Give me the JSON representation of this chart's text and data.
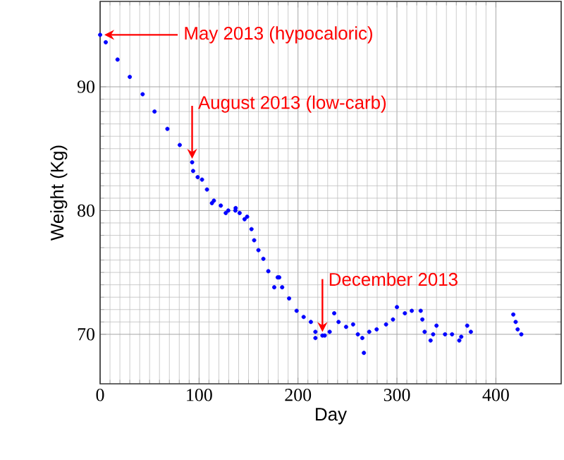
{
  "chart_data": {
    "type": "scatter",
    "xlabel": "Day",
    "ylabel": "Weight (Kg)",
    "xlim": [
      0,
      466
    ],
    "ylim": [
      66,
      96.9
    ],
    "xticks": [
      0,
      100,
      200,
      300,
      400
    ],
    "yticks": [
      70,
      80,
      90
    ],
    "grid": true,
    "marker": "circle",
    "x": [
      0,
      5.7,
      17.6,
      30,
      43,
      55,
      68,
      80.5,
      93,
      94,
      98.6,
      103,
      108,
      113,
      115,
      122,
      127,
      129.5,
      136.7,
      137,
      141,
      146,
      148.6,
      153,
      155.7,
      160,
      165,
      170,
      176,
      179.5,
      181,
      184,
      191,
      198.6,
      205.7,
      213,
      217.6,
      217.6,
      224.7,
      227,
      232,
      236.6,
      241,
      248.6,
      255.7,
      260.5,
      265,
      266.6,
      272,
      279.5,
      289,
      296,
      300,
      308,
      315,
      324,
      325.7,
      328,
      334,
      336.6,
      340,
      348.6,
      355.7,
      363,
      365,
      371,
      374.7,
      417.6,
      420,
      422,
      425.7
    ],
    "series": [
      {
        "color": "#0000ff",
        "values": [
          94.2,
          93.6,
          92.2,
          90.8,
          89.4,
          88,
          86.6,
          85.3,
          83.9,
          83.2,
          82.7,
          82.5,
          81.7,
          80.6,
          80.8,
          80.4,
          79.8,
          80.0,
          80.0,
          80.2,
          79.8,
          79.3,
          79.5,
          78.5,
          77.6,
          76.8,
          76.1,
          75.1,
          73.8,
          74.6,
          74.6,
          73.8,
          72.9,
          71.9,
          71.4,
          71.0,
          69.7,
          70.2,
          69.9,
          69.9,
          70.2,
          71.7,
          71.0,
          70.6,
          70.8,
          70.0,
          69.7,
          68.5,
          70.2,
          70.4,
          70.8,
          71.2,
          72.2,
          71.7,
          71.9,
          71.9,
          71.2,
          70.2,
          69.5,
          70.0,
          70.7,
          70.0,
          70.0,
          69.5,
          69.8,
          70.7,
          70.2,
          71.6,
          71.0,
          70.4,
          70.0
        ]
      }
    ],
    "annotations": [
      {
        "text": "May 2013 (hypocaloric)",
        "x": 0,
        "y": 94.2
      },
      {
        "text": "August 2013 (low-carb)",
        "x": 93,
        "y": 83.9
      },
      {
        "text": "December 2013",
        "x": 224.7,
        "y": 69.9
      }
    ]
  }
}
